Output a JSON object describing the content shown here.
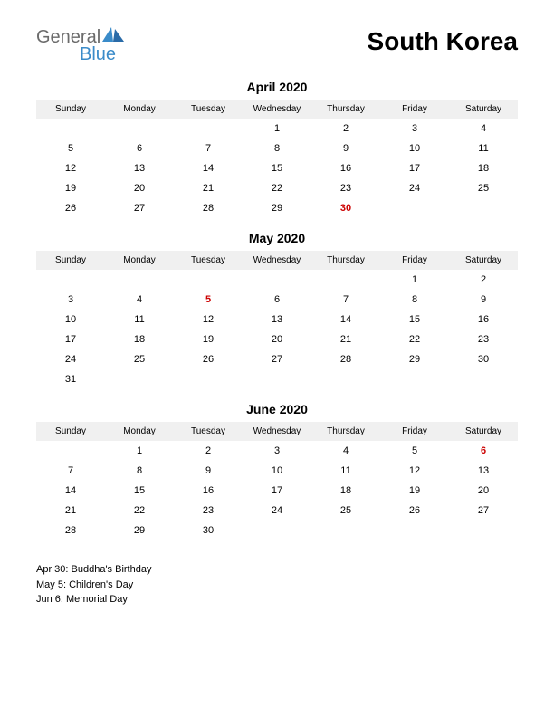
{
  "logo": {
    "text_general": "General",
    "text_blue": "Blue",
    "icon_color": "#3a8bc9",
    "gray_color": "#6b6b6b"
  },
  "title": "South Korea",
  "day_headers": [
    "Sunday",
    "Monday",
    "Tuesday",
    "Wednesday",
    "Thursday",
    "Friday",
    "Saturday"
  ],
  "months": [
    {
      "title": "April 2020",
      "weeks": [
        [
          null,
          null,
          null,
          "1",
          "2",
          "3",
          "4"
        ],
        [
          "5",
          "6",
          "7",
          "8",
          "9",
          "10",
          "11"
        ],
        [
          "12",
          "13",
          "14",
          "15",
          "16",
          "17",
          "18"
        ],
        [
          "19",
          "20",
          "21",
          "22",
          "23",
          "24",
          "25"
        ],
        [
          "26",
          "27",
          "28",
          "29",
          "30",
          null,
          null
        ]
      ],
      "holidays": [
        "30"
      ]
    },
    {
      "title": "May 2020",
      "weeks": [
        [
          null,
          null,
          null,
          null,
          null,
          "1",
          "2"
        ],
        [
          "3",
          "4",
          "5",
          "6",
          "7",
          "8",
          "9"
        ],
        [
          "10",
          "11",
          "12",
          "13",
          "14",
          "15",
          "16"
        ],
        [
          "17",
          "18",
          "19",
          "20",
          "21",
          "22",
          "23"
        ],
        [
          "24",
          "25",
          "26",
          "27",
          "28",
          "29",
          "30"
        ],
        [
          "31",
          null,
          null,
          null,
          null,
          null,
          null
        ]
      ],
      "holidays": [
        "5"
      ]
    },
    {
      "title": "June 2020",
      "weeks": [
        [
          null,
          "1",
          "2",
          "3",
          "4",
          "5",
          "6"
        ],
        [
          "7",
          "8",
          "9",
          "10",
          "11",
          "12",
          "13"
        ],
        [
          "14",
          "15",
          "16",
          "17",
          "18",
          "19",
          "20"
        ],
        [
          "21",
          "22",
          "23",
          "24",
          "25",
          "26",
          "27"
        ],
        [
          "28",
          "29",
          "30",
          null,
          null,
          null,
          null
        ]
      ],
      "holidays": [
        "6"
      ]
    }
  ],
  "holiday_notes": [
    "Apr 30: Buddha's Birthday",
    "May 5: Children's Day",
    "Jun 6: Memorial Day"
  ],
  "colors": {
    "header_bg": "#f0f0f0",
    "holiday_text": "#cc0000",
    "text": "#000000",
    "background": "#ffffff"
  },
  "typography": {
    "title_fontsize": 28,
    "month_title_fontsize": 14,
    "header_fontsize": 10,
    "cell_fontsize": 11,
    "notes_fontsize": 11
  }
}
